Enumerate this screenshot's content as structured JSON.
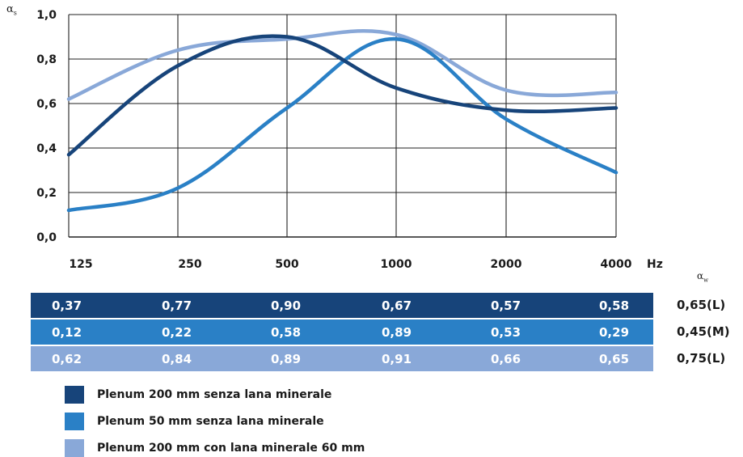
{
  "chart_data": {
    "type": "line",
    "ylabel": "αs",
    "x_unit": "Hz",
    "categories": [
      "125",
      "250",
      "500",
      "1000",
      "2000",
      "4000"
    ],
    "y_ticks": [
      "0,0",
      "0,2",
      "0,4",
      "0,6",
      "0,8",
      "1,0"
    ],
    "ylim": [
      0,
      1.0
    ],
    "grid": true,
    "series": [
      {
        "name": "Plenum 200 mm senza lana minerale",
        "color": "#17447a",
        "values": [
          0.37,
          0.77,
          0.9,
          0.67,
          0.57,
          0.58
        ]
      },
      {
        "name": "Plenum 50 mm senza lana minerale",
        "color": "#2a80c6",
        "values": [
          0.12,
          0.22,
          0.58,
          0.89,
          0.53,
          0.29
        ]
      },
      {
        "name": "Plenum 200 mm con lana minerale 60 mm",
        "color": "#89a8d8",
        "values": [
          0.62,
          0.84,
          0.89,
          0.91,
          0.66,
          0.65
        ]
      }
    ]
  },
  "table": {
    "aw_header": "αw",
    "rows": [
      {
        "cells": [
          "0,37",
          "0,77",
          "0,90",
          "0,67",
          "0,57",
          "0,58"
        ],
        "aw": "0,65(L)",
        "color": "#17447a"
      },
      {
        "cells": [
          "0,12",
          "0,22",
          "0,58",
          "0,89",
          "0,53",
          "0,29"
        ],
        "aw": "0,45(M)",
        "color": "#2a80c6"
      },
      {
        "cells": [
          "0,62",
          "0,84",
          "0,89",
          "0,91",
          "0,66",
          "0,65"
        ],
        "aw": "0,75(L)",
        "color": "#89a8d8"
      }
    ]
  },
  "legend": [
    {
      "label": "Plenum 200 mm senza lana minerale",
      "color": "#17447a"
    },
    {
      "label": "Plenum 50 mm senza lana minerale",
      "color": "#2a80c6"
    },
    {
      "label": "Plenum 200 mm con lana minerale 60 mm",
      "color": "#89a8d8"
    }
  ]
}
